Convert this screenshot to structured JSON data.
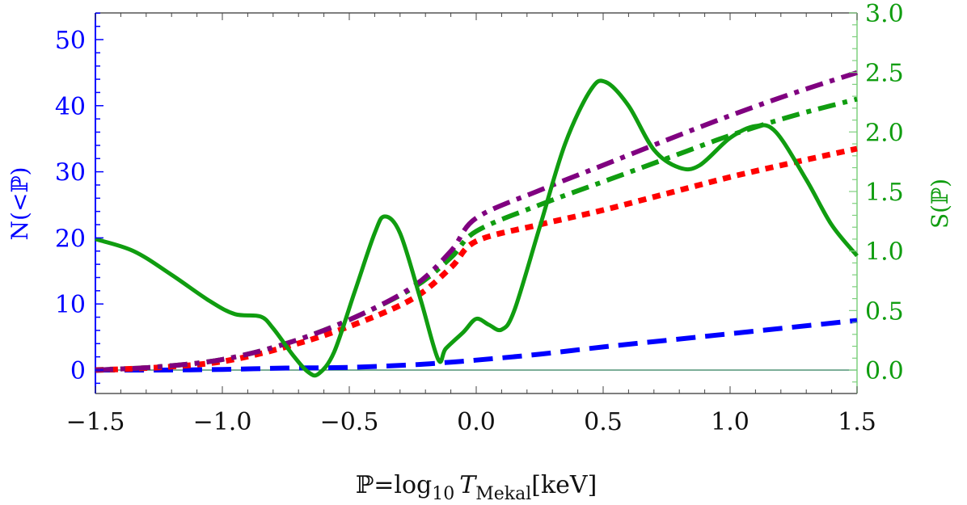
{
  "chart_data": {
    "type": "line",
    "title": "",
    "xlabel": "ℙ=log10 T_Mekal [keV]",
    "xlabel_parts": {
      "main": "ℙ=log",
      "sub1": "10",
      "var": "T",
      "sub2": "Mekal",
      "unit": "[keV]"
    },
    "ylabel_left": "N(<ℙ)",
    "ylabel_right": "S(ℙ)",
    "xlim": [
      -1.5,
      1.5
    ],
    "ylim_left": [
      -3.6,
      53.9
    ],
    "ylim_right": [
      -0.2,
      3.0
    ],
    "x_ticks": [
      "−1.5",
      "−1.0",
      "−0.5",
      "0.0",
      "0.5",
      "1.0",
      "1.5"
    ],
    "x_tick_values": [
      -1.5,
      -1.0,
      -0.5,
      0.0,
      0.5,
      1.0,
      1.5
    ],
    "y_left_ticks": [
      "0",
      "10",
      "20",
      "30",
      "40",
      "50"
    ],
    "y_left_tick_values": [
      0,
      10,
      20,
      30,
      40,
      50
    ],
    "y_right_ticks": [
      "0.0",
      "0.5",
      "1.0",
      "1.5",
      "2.0",
      "2.5",
      "3.0"
    ],
    "y_right_tick_values": [
      0.0,
      0.5,
      1.0,
      1.5,
      2.0,
      2.5,
      3.0
    ],
    "grid": false,
    "legend": null,
    "x": [
      -1.5,
      -1.25,
      -1.0,
      -0.75,
      -0.5,
      -0.25,
      -0.1,
      0.0,
      0.25,
      0.5,
      0.75,
      1.0,
      1.25,
      1.5
    ],
    "series": [
      {
        "name": "N purple dot-dash",
        "axis": "left",
        "color": "#800080",
        "style": "dashdot",
        "values": [
          0.0,
          0.5,
          1.6,
          4.0,
          7.6,
          12.6,
          18.0,
          23.0,
          27.2,
          31.0,
          34.8,
          38.5,
          41.9,
          45.0
        ]
      },
      {
        "name": "N green dot-dash",
        "axis": "left",
        "color": "#109d10",
        "style": "dashdot",
        "values": [
          0.0,
          0.5,
          1.6,
          4.0,
          7.6,
          12.4,
          17.0,
          21.0,
          25.0,
          28.5,
          32.0,
          35.5,
          38.5,
          41.0
        ]
      },
      {
        "name": "N red dotted",
        "axis": "left",
        "color": "#ff0000",
        "style": "dotted",
        "values": [
          0.0,
          0.4,
          1.3,
          3.5,
          6.6,
          10.8,
          15.5,
          19.5,
          22.0,
          24.2,
          26.7,
          29.2,
          31.4,
          33.5
        ]
      },
      {
        "name": "N blue dashed",
        "axis": "left",
        "color": "#0000ff",
        "style": "dashed",
        "values": [
          0.0,
          0.0,
          0.1,
          0.3,
          0.4,
          0.8,
          1.2,
          1.5,
          2.4,
          3.5,
          4.5,
          5.5,
          6.5,
          7.5
        ]
      },
      {
        "name": "S solid green",
        "axis": "right",
        "color": "#109d10",
        "style": "solid",
        "points": [
          [
            -1.5,
            1.1
          ],
          [
            -1.35,
            1.0
          ],
          [
            -1.2,
            0.8
          ],
          [
            -1.05,
            0.58
          ],
          [
            -0.95,
            0.47
          ],
          [
            -0.85,
            0.45
          ],
          [
            -0.8,
            0.35
          ],
          [
            -0.72,
            0.12
          ],
          [
            -0.66,
            -0.02
          ],
          [
            -0.62,
            -0.03
          ],
          [
            -0.56,
            0.15
          ],
          [
            -0.48,
            0.65
          ],
          [
            -0.4,
            1.15
          ],
          [
            -0.36,
            1.29
          ],
          [
            -0.3,
            1.15
          ],
          [
            -0.22,
            0.6
          ],
          [
            -0.15,
            0.09
          ],
          [
            -0.12,
            0.18
          ],
          [
            -0.05,
            0.32
          ],
          [
            0.0,
            0.43
          ],
          [
            0.05,
            0.38
          ],
          [
            0.1,
            0.34
          ],
          [
            0.15,
            0.5
          ],
          [
            0.25,
            1.2
          ],
          [
            0.35,
            1.9
          ],
          [
            0.45,
            2.35
          ],
          [
            0.51,
            2.42
          ],
          [
            0.6,
            2.22
          ],
          [
            0.7,
            1.85
          ],
          [
            0.8,
            1.7
          ],
          [
            0.88,
            1.72
          ],
          [
            1.0,
            1.95
          ],
          [
            1.1,
            2.05
          ],
          [
            1.18,
            2.0
          ],
          [
            1.3,
            1.6
          ],
          [
            1.4,
            1.22
          ],
          [
            1.5,
            0.96
          ]
        ]
      }
    ],
    "colors": {
      "left_axis": "#0000ff",
      "right_axis": "#109d10",
      "right_axis_line": "#7fd07f",
      "zero_line": "#2e7d5b",
      "frame": "#555555"
    }
  }
}
